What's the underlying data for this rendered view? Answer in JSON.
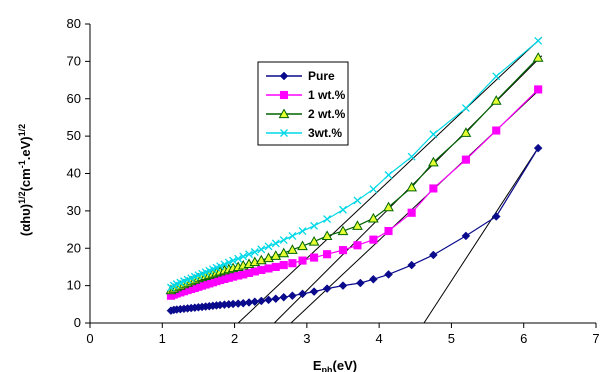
{
  "chart_data": {
    "type": "scatter",
    "title": "",
    "xlabel": {
      "main": "E",
      "sub": "ph",
      "rest": "(eV)"
    },
    "ylabel": {
      "a": "(αhυ)",
      "b": "1/2",
      "c": "(cm",
      "d": "-1",
      "e": ".eV)",
      "f": "1/2"
    },
    "xlim": [
      0,
      7
    ],
    "ylim": [
      0,
      80
    ],
    "xticks": [
      "0",
      "1",
      "2",
      "3",
      "4",
      "5",
      "6",
      "7"
    ],
    "yticks": [
      "0",
      "10",
      "20",
      "30",
      "40",
      "50",
      "60",
      "70",
      "80"
    ],
    "grid": false,
    "legend_placement": "top-center",
    "series": [
      {
        "name": "Pure",
        "color": "#0a0a8c",
        "marker": "diamond",
        "x": [
          1.12,
          1.16,
          1.2,
          1.25,
          1.3,
          1.35,
          1.4,
          1.45,
          1.5,
          1.55,
          1.6,
          1.65,
          1.7,
          1.75,
          1.8,
          1.86,
          1.92,
          1.98,
          2.05,
          2.12,
          2.2,
          2.28,
          2.37,
          2.47,
          2.57,
          2.68,
          2.8,
          2.94,
          3.1,
          3.28,
          3.5,
          3.74,
          3.92,
          4.13,
          4.45,
          4.75,
          5.2,
          5.62,
          6.2
        ],
        "y": [
          3.3,
          3.5,
          3.6,
          3.7,
          3.8,
          3.9,
          4.0,
          4.1,
          4.2,
          4.3,
          4.4,
          4.5,
          4.6,
          4.7,
          4.8,
          4.9,
          5.0,
          5.1,
          5.2,
          5.3,
          5.5,
          5.7,
          5.9,
          6.2,
          6.5,
          6.9,
          7.3,
          7.8,
          8.4,
          9.2,
          10.0,
          10.7,
          11.7,
          13.0,
          15.5,
          18.2,
          23.3,
          28.5,
          46.8
        ]
      },
      {
        "name": "1 wt.%",
        "color": "#ff00ff",
        "marker": "square",
        "x": [
          1.12,
          1.16,
          1.2,
          1.25,
          1.3,
          1.35,
          1.4,
          1.45,
          1.5,
          1.55,
          1.6,
          1.65,
          1.7,
          1.75,
          1.8,
          1.86,
          1.92,
          1.98,
          2.05,
          2.12,
          2.2,
          2.28,
          2.37,
          2.47,
          2.57,
          2.68,
          2.8,
          2.94,
          3.1,
          3.28,
          3.5,
          3.7,
          3.92,
          4.13,
          4.45,
          4.75,
          5.2,
          5.62,
          6.2
        ],
        "y": [
          7.3,
          7.6,
          7.9,
          8.2,
          8.5,
          8.8,
          9.1,
          9.4,
          9.7,
          10.0,
          10.3,
          10.6,
          10.9,
          11.2,
          11.5,
          11.8,
          12.1,
          12.4,
          12.7,
          13.0,
          13.4,
          13.8,
          14.2,
          14.6,
          15.0,
          15.5,
          16.0,
          16.7,
          17.5,
          18.4,
          19.5,
          20.8,
          22.3,
          24.6,
          29.5,
          36.0,
          43.7,
          51.5,
          62.5
        ]
      },
      {
        "name": "2 wt.%",
        "color": "#006400",
        "marker": "triangle",
        "fill": "#e6ff33",
        "x": [
          1.12,
          1.16,
          1.2,
          1.25,
          1.3,
          1.35,
          1.4,
          1.45,
          1.5,
          1.55,
          1.6,
          1.65,
          1.7,
          1.75,
          1.8,
          1.86,
          1.92,
          1.98,
          2.05,
          2.12,
          2.2,
          2.28,
          2.37,
          2.47,
          2.57,
          2.68,
          2.8,
          2.94,
          3.1,
          3.28,
          3.5,
          3.7,
          3.92,
          4.13,
          4.45,
          4.75,
          5.2,
          5.62,
          6.2
        ],
        "y": [
          8.8,
          9.2,
          9.6,
          10.0,
          10.4,
          10.8,
          11.2,
          11.6,
          12.0,
          12.3,
          12.6,
          12.9,
          13.2,
          13.5,
          13.8,
          14.1,
          14.4,
          14.7,
          15.0,
          15.4,
          15.8,
          16.3,
          16.8,
          17.4,
          18.0,
          18.7,
          19.6,
          20.6,
          21.8,
          23.3,
          24.6,
          26.0,
          28.0,
          31.0,
          36.3,
          43.0,
          50.9,
          59.5,
          71.0
        ]
      },
      {
        "name": "3wt.%",
        "color": "#00d8e8",
        "marker": "x",
        "x": [
          1.12,
          1.16,
          1.2,
          1.25,
          1.3,
          1.35,
          1.4,
          1.45,
          1.5,
          1.55,
          1.6,
          1.65,
          1.7,
          1.75,
          1.8,
          1.86,
          1.92,
          1.98,
          2.05,
          2.12,
          2.2,
          2.28,
          2.37,
          2.47,
          2.57,
          2.68,
          2.8,
          2.94,
          3.1,
          3.28,
          3.5,
          3.7,
          3.92,
          4.13,
          4.45,
          4.75,
          5.2,
          5.62,
          6.2
        ],
        "y": [
          9.5,
          10.0,
          10.4,
          10.8,
          11.2,
          11.6,
          12.0,
          12.4,
          12.8,
          13.2,
          13.6,
          14.0,
          14.4,
          14.8,
          15.2,
          15.7,
          16.2,
          16.7,
          17.2,
          17.8,
          18.4,
          19.0,
          19.7,
          20.5,
          21.3,
          22.2,
          23.3,
          24.6,
          26.0,
          27.8,
          30.3,
          32.8,
          35.8,
          39.6,
          44.5,
          50.5,
          57.5,
          66.0,
          75.5
        ]
      }
    ],
    "fit_lines": [
      {
        "series": "Pure",
        "x": [
          4.62,
          6.22
        ],
        "y": [
          0,
          47.5
        ]
      },
      {
        "series": "1 wt.%",
        "x": [
          2.78,
          6.25
        ],
        "y": [
          0,
          63
        ]
      },
      {
        "series": "2 wt.%",
        "x": [
          2.55,
          6.25
        ],
        "y": [
          0,
          71.5
        ]
      },
      {
        "series": "3wt.%",
        "x": [
          2.05,
          6.25
        ],
        "y": [
          0,
          76.5
        ]
      }
    ]
  }
}
